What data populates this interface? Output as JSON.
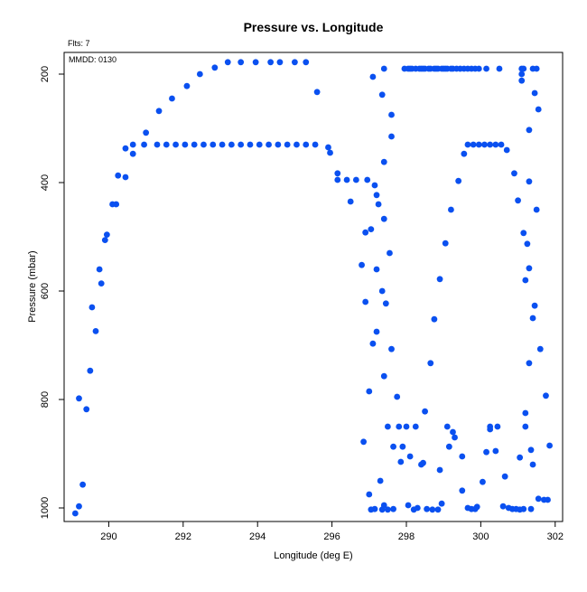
{
  "chart_data": {
    "type": "scatter",
    "title": "Pressure vs. Longitude",
    "xlabel": "Longitude (deg E)",
    "ylabel": "Pressure (mbar)",
    "annotations": [
      "Flts: 7",
      "MMDD: 0130"
    ],
    "xlim": [
      288.8,
      302.2
    ],
    "ylim": [
      1025,
      160
    ],
    "y_inverted": true,
    "x_ticks": [
      290,
      292,
      294,
      296,
      298,
      300,
      302
    ],
    "y_ticks": [
      200,
      400,
      600,
      800,
      1000
    ],
    "grid": false,
    "point_color": "#0a50f0",
    "points": [
      [
        289.1,
        1010
      ],
      [
        289.2,
        997
      ],
      [
        289.2,
        798
      ],
      [
        289.3,
        957
      ],
      [
        289.4,
        818
      ],
      [
        289.5,
        747
      ],
      [
        289.55,
        630
      ],
      [
        289.65,
        674
      ],
      [
        289.75,
        560
      ],
      [
        289.8,
        586
      ],
      [
        289.9,
        506
      ],
      [
        289.95,
        496
      ],
      [
        290.1,
        440
      ],
      [
        290.2,
        440
      ],
      [
        290.25,
        387
      ],
      [
        290.45,
        390
      ],
      [
        290.45,
        337
      ],
      [
        290.65,
        347
      ],
      [
        290.65,
        330
      ],
      [
        290.95,
        330
      ],
      [
        291.0,
        308
      ],
      [
        291.3,
        330
      ],
      [
        291.35,
        268
      ],
      [
        291.55,
        330
      ],
      [
        291.7,
        245
      ],
      [
        291.8,
        330
      ],
      [
        292.05,
        330
      ],
      [
        292.1,
        222
      ],
      [
        292.3,
        330
      ],
      [
        292.45,
        200
      ],
      [
        292.55,
        330
      ],
      [
        292.8,
        330
      ],
      [
        292.85,
        188
      ],
      [
        293.05,
        330
      ],
      [
        293.2,
        178
      ],
      [
        293.3,
        330
      ],
      [
        293.55,
        178
      ],
      [
        293.55,
        330
      ],
      [
        293.8,
        330
      ],
      [
        293.95,
        178
      ],
      [
        294.05,
        330
      ],
      [
        294.3,
        330
      ],
      [
        294.35,
        178
      ],
      [
        294.55,
        330
      ],
      [
        294.6,
        178
      ],
      [
        294.8,
        330
      ],
      [
        295.0,
        178
      ],
      [
        295.05,
        330
      ],
      [
        295.3,
        178
      ],
      [
        295.3,
        330
      ],
      [
        295.55,
        330
      ],
      [
        295.6,
        233
      ],
      [
        295.9,
        335
      ],
      [
        295.95,
        345
      ],
      [
        296.15,
        383
      ],
      [
        296.15,
        395
      ],
      [
        296.4,
        395
      ],
      [
        296.5,
        435
      ],
      [
        296.65,
        395
      ],
      [
        296.8,
        552
      ],
      [
        296.85,
        878
      ],
      [
        296.9,
        492
      ],
      [
        296.9,
        620
      ],
      [
        296.95,
        395
      ],
      [
        297.0,
        785
      ],
      [
        297.0,
        975
      ],
      [
        297.05,
        486
      ],
      [
        297.05,
        1003
      ],
      [
        297.1,
        205
      ],
      [
        297.1,
        697
      ],
      [
        297.15,
        405
      ],
      [
        297.15,
        1002
      ],
      [
        297.2,
        423
      ],
      [
        297.2,
        560
      ],
      [
        297.2,
        675
      ],
      [
        297.25,
        440
      ],
      [
        297.3,
        950
      ],
      [
        297.35,
        238
      ],
      [
        297.35,
        600
      ],
      [
        297.35,
        1003
      ],
      [
        297.4,
        190
      ],
      [
        297.4,
        362
      ],
      [
        297.4,
        467
      ],
      [
        297.4,
        757
      ],
      [
        297.4,
        995
      ],
      [
        297.45,
        623
      ],
      [
        297.5,
        850
      ],
      [
        297.5,
        1003
      ],
      [
        297.55,
        530
      ],
      [
        297.6,
        275
      ],
      [
        297.6,
        315
      ],
      [
        297.6,
        707
      ],
      [
        297.65,
        887
      ],
      [
        297.65,
        1002
      ],
      [
        297.75,
        795
      ],
      [
        297.8,
        850
      ],
      [
        297.85,
        915
      ],
      [
        297.9,
        887
      ],
      [
        297.95,
        190
      ],
      [
        298.0,
        850
      ],
      [
        298.05,
        190
      ],
      [
        298.05,
        995
      ],
      [
        298.1,
        190
      ],
      [
        298.1,
        905
      ],
      [
        298.15,
        190
      ],
      [
        298.2,
        1003
      ],
      [
        298.25,
        190
      ],
      [
        298.25,
        850
      ],
      [
        298.3,
        1000
      ],
      [
        298.35,
        190
      ],
      [
        298.4,
        190
      ],
      [
        298.4,
        920
      ],
      [
        298.45,
        190
      ],
      [
        298.45,
        917
      ],
      [
        298.5,
        190
      ],
      [
        298.5,
        822
      ],
      [
        298.55,
        1002
      ],
      [
        298.6,
        190
      ],
      [
        298.65,
        733
      ],
      [
        298.65,
        190
      ],
      [
        298.7,
        1003
      ],
      [
        298.75,
        190
      ],
      [
        298.75,
        652
      ],
      [
        298.8,
        190
      ],
      [
        298.85,
        1003
      ],
      [
        298.85,
        190
      ],
      [
        298.9,
        930
      ],
      [
        298.9,
        578
      ],
      [
        298.95,
        190
      ],
      [
        298.95,
        992
      ],
      [
        299.0,
        190
      ],
      [
        299.05,
        512
      ],
      [
        299.05,
        190
      ],
      [
        299.1,
        850
      ],
      [
        299.1,
        190
      ],
      [
        299.15,
        887
      ],
      [
        299.2,
        190
      ],
      [
        299.2,
        450
      ],
      [
        299.25,
        860
      ],
      [
        299.25,
        190
      ],
      [
        299.3,
        870
      ],
      [
        299.35,
        190
      ],
      [
        299.4,
        397
      ],
      [
        299.45,
        190
      ],
      [
        299.5,
        905
      ],
      [
        299.5,
        968
      ],
      [
        299.55,
        347
      ],
      [
        299.55,
        190
      ],
      [
        299.65,
        1000
      ],
      [
        299.65,
        330
      ],
      [
        299.65,
        190
      ],
      [
        299.75,
        190
      ],
      [
        299.75,
        1002
      ],
      [
        299.8,
        330
      ],
      [
        299.85,
        1002
      ],
      [
        299.85,
        190
      ],
      [
        299.9,
        998
      ],
      [
        299.95,
        190
      ],
      [
        299.95,
        330
      ],
      [
        300.05,
        952
      ],
      [
        300.1,
        330
      ],
      [
        300.15,
        897
      ],
      [
        300.15,
        190
      ],
      [
        300.25,
        330
      ],
      [
        300.25,
        850
      ],
      [
        300.25,
        855
      ],
      [
        300.4,
        895
      ],
      [
        300.4,
        330
      ],
      [
        300.45,
        850
      ],
      [
        300.5,
        190
      ],
      [
        300.55,
        330
      ],
      [
        300.6,
        997
      ],
      [
        300.65,
        942
      ],
      [
        300.7,
        340
      ],
      [
        300.75,
        1000
      ],
      [
        300.85,
        1002
      ],
      [
        300.9,
        383
      ],
      [
        300.95,
        1002
      ],
      [
        301.0,
        433
      ],
      [
        301.05,
        907
      ],
      [
        301.05,
        1003
      ],
      [
        301.1,
        190
      ],
      [
        301.1,
        200
      ],
      [
        301.1,
        212
      ],
      [
        301.15,
        493
      ],
      [
        301.15,
        190
      ],
      [
        301.15,
        1002
      ],
      [
        301.2,
        580
      ],
      [
        301.2,
        825
      ],
      [
        301.2,
        850
      ],
      [
        301.25,
        513
      ],
      [
        301.3,
        303
      ],
      [
        301.3,
        398
      ],
      [
        301.3,
        558
      ],
      [
        301.3,
        733
      ],
      [
        301.35,
        893
      ],
      [
        301.35,
        1002
      ],
      [
        301.4,
        920
      ],
      [
        301.4,
        650
      ],
      [
        301.4,
        190
      ],
      [
        301.45,
        235
      ],
      [
        301.45,
        627
      ],
      [
        301.5,
        450
      ],
      [
        301.5,
        190
      ],
      [
        301.55,
        265
      ],
      [
        301.55,
        983
      ],
      [
        301.6,
        707
      ],
      [
        301.7,
        985
      ],
      [
        301.75,
        793
      ],
      [
        301.8,
        985
      ],
      [
        301.85,
        885
      ]
    ]
  }
}
